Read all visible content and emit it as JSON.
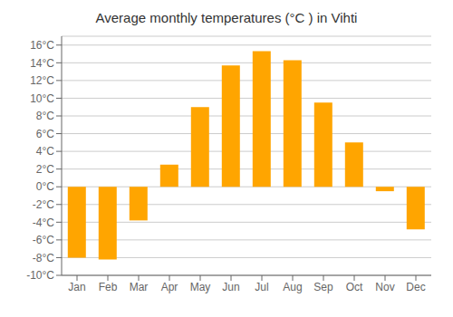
{
  "chart_data": {
    "type": "bar",
    "title": "Average monthly temperatures (°C ) in Vihti",
    "categories": [
      "Jan",
      "Feb",
      "Mar",
      "Apr",
      "May",
      "Jun",
      "Jul",
      "Aug",
      "Sep",
      "Oct",
      "Nov",
      "Dec"
    ],
    "values": [
      -8.0,
      -8.2,
      -3.8,
      2.5,
      9.0,
      13.7,
      15.3,
      14.3,
      9.5,
      5.0,
      -0.5,
      -4.8
    ],
    "color": "#FFA500",
    "ylim": [
      -10,
      17
    ],
    "yticks": [
      {
        "value": -10,
        "label": "-10°C"
      },
      {
        "value": -8,
        "label": "-8°C"
      },
      {
        "value": -6,
        "label": "-6°C"
      },
      {
        "value": -4,
        "label": "-4°C"
      },
      {
        "value": -2,
        "label": "-2°C"
      },
      {
        "value": 0,
        "label": "0°C"
      },
      {
        "value": 2,
        "label": "2°C"
      },
      {
        "value": 4,
        "label": "4°C"
      },
      {
        "value": 6,
        "label": "6°C"
      },
      {
        "value": 8,
        "label": "8°C"
      },
      {
        "value": 10,
        "label": "10°C"
      },
      {
        "value": 12,
        "label": "12°C"
      },
      {
        "value": 14,
        "label": "14°C"
      },
      {
        "value": 16,
        "label": "16°C"
      }
    ],
    "grid": true
  }
}
